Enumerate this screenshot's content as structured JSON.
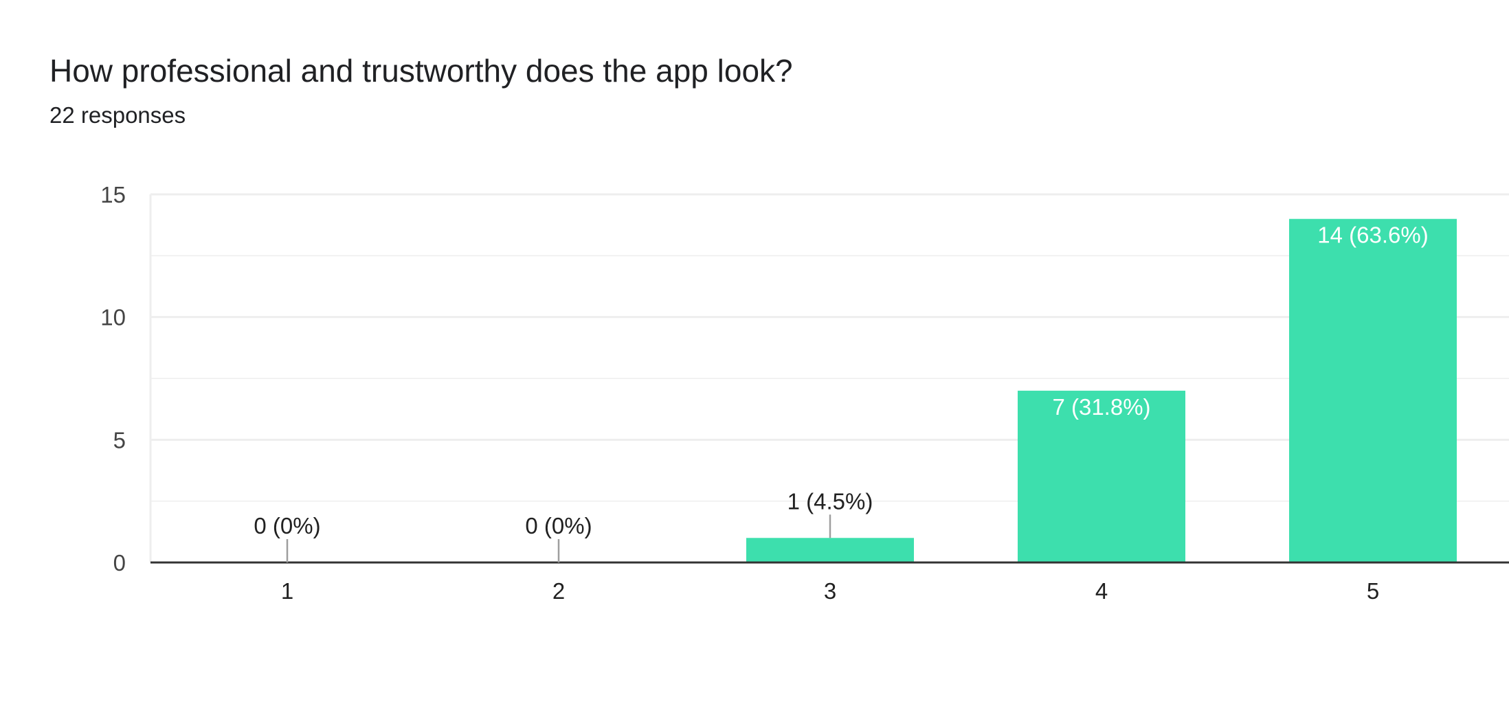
{
  "question": {
    "title": "How professional and trustworthy does the app look?",
    "responses": "22 responses"
  },
  "colors": {
    "bar": "#3ddfad",
    "grid": "#eeeeee",
    "axis": "#333333",
    "leader": "#9e9e9e",
    "label_inside": "#ffffff",
    "label_outside": "#212121",
    "tick": "#444444"
  },
  "chart_data": {
    "type": "bar",
    "categories": [
      "1",
      "2",
      "3",
      "4",
      "5"
    ],
    "values": [
      0,
      0,
      1,
      7,
      14
    ],
    "labels": [
      "0 (0%)",
      "0 (0%)",
      "1 (4.5%)",
      "7 (31.8%)",
      "14 (63.6%)"
    ],
    "ylim": [
      0,
      15
    ],
    "yticks": [
      0,
      5,
      10,
      15
    ],
    "minor_gridlines": true,
    "title": "",
    "xlabel": "",
    "ylabel": ""
  }
}
